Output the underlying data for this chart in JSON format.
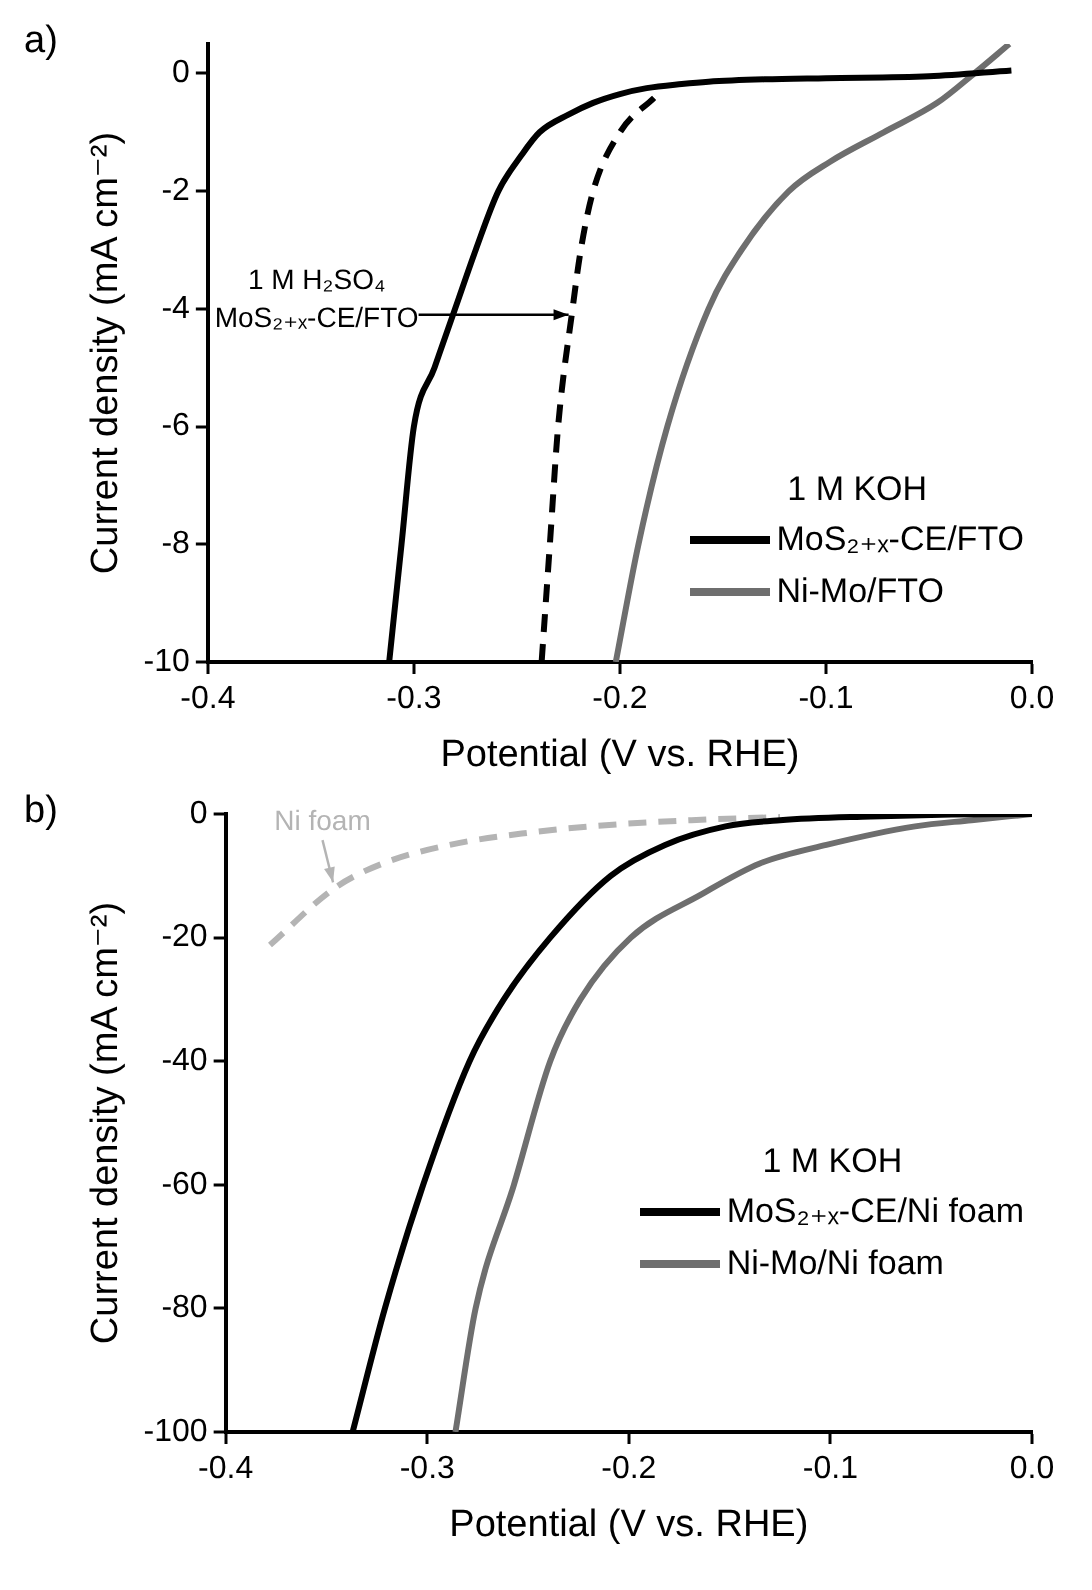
{
  "chart_data": [
    {
      "type": "line",
      "title": "a)",
      "xlabel": "Potential (V vs. RHE)",
      "ylabel": "Current density (mA cm⁻²)",
      "legend_title": "1 M KOH",
      "legend": "bottom right",
      "xlim": [
        -0.4,
        0
      ],
      "xticks": [
        -0.4,
        -0.3,
        -0.2,
        -0.1,
        {
          "value": 0,
          "label": "0.0"
        }
      ],
      "ylim": [
        -10,
        0.5
      ],
      "yticks": [
        -10,
        -8,
        -6,
        -4,
        -2,
        0
      ],
      "annotations": [
        {
          "text": "1 M H₂SO₄\nMoS₂₊ₓ-CE/FTO",
          "x": -0.222,
          "y": -4.1
        }
      ],
      "series": [
        {
          "name": "MoS₂₊ₓ-CE/FTO",
          "color": "#000000",
          "line_style": "solid",
          "x": [
            -0.312,
            -0.306,
            -0.3,
            -0.29,
            -0.28,
            -0.27,
            -0.259,
            -0.248,
            -0.239,
            -0.225,
            -0.213,
            -0.2,
            -0.187,
            -0.17,
            -0.157,
            -0.13,
            -0.1,
            -0.05,
            -0.01
          ],
          "values": [
            -10,
            -8,
            -6,
            -5,
            -4,
            -3,
            -2,
            -1.4,
            -1,
            -0.7,
            -0.5,
            -0.35,
            -0.25,
            -0.18,
            -0.14,
            -0.1,
            -0.08,
            -0.05,
            0.05
          ]
        },
        {
          "name": "Ni-Mo/FTO",
          "color": "#6e6e6e",
          "line_style": "solid",
          "x": [
            -0.202,
            -0.191,
            -0.177,
            -0.157,
            -0.141,
            -0.118,
            -0.098,
            -0.072,
            -0.046,
            -0.028,
            -0.011
          ],
          "values": [
            -10,
            -8,
            -6,
            -4,
            -3,
            -2,
            -1.5,
            -1,
            -0.5,
            0,
            0.5
          ]
        },
        {
          "color": "#000000",
          "line_style": "dashed",
          "x": [
            -0.238,
            -0.234,
            -0.23,
            -0.223,
            -0.219,
            -0.213,
            -0.2,
            -0.183
          ],
          "values": [
            -10,
            -8,
            -6,
            -4,
            -3,
            -2,
            -1,
            -0.4
          ]
        }
      ]
    },
    {
      "type": "line",
      "title": "b)",
      "xlabel": "Potential (V vs. RHE)",
      "ylabel": "Current density (mA cm⁻²)",
      "legend_title": "1 M KOH",
      "legend": "right",
      "xlim": [
        -0.4,
        0
      ],
      "xticks": [
        -0.4,
        -0.3,
        -0.2,
        -0.1,
        {
          "value": 0,
          "label": "0.0"
        }
      ],
      "ylim": [
        -100,
        0
      ],
      "yticks": [
        -100,
        -80,
        -60,
        -40,
        -20,
        0
      ],
      "annotations": [
        {
          "text": "Ni foam",
          "x": -0.346,
          "y": -12
        }
      ],
      "series": [
        {
          "name": "MoS₂₊ₓ-CE/Ni foam",
          "color": "#000000",
          "line_style": "solid",
          "x": [
            -0.337,
            -0.321,
            -0.302,
            -0.279,
            -0.262,
            -0.239,
            -0.209,
            -0.182,
            -0.152,
            -0.125,
            -0.08,
            -0.04,
            0
          ],
          "values": [
            -100,
            -80,
            -60,
            -40,
            -30,
            -20,
            -10,
            -5,
            -2,
            -1,
            -0.4,
            -0.1,
            0
          ]
        },
        {
          "name": "Ni-Mo/Ni foam",
          "color": "#6e6e6e",
          "line_style": "solid",
          "x": [
            -0.286,
            -0.276,
            -0.257,
            -0.239,
            -0.224,
            -0.199,
            -0.164,
            -0.135,
            -0.102,
            -0.058,
            -0.03,
            0
          ],
          "values": [
            -100,
            -80,
            -60,
            -40,
            -30,
            -20,
            -13,
            -8,
            -5,
            -2,
            -1,
            0
          ]
        },
        {
          "color": "#b4b4b4",
          "line_style": "dashed",
          "x": [
            -0.378,
            -0.346,
            -0.322,
            -0.289,
            -0.249,
            -0.219,
            -0.169,
            -0.125
          ],
          "values": [
            -21.2,
            -12,
            -8,
            -5,
            -3,
            -2,
            -1,
            -0.5
          ]
        }
      ]
    }
  ]
}
